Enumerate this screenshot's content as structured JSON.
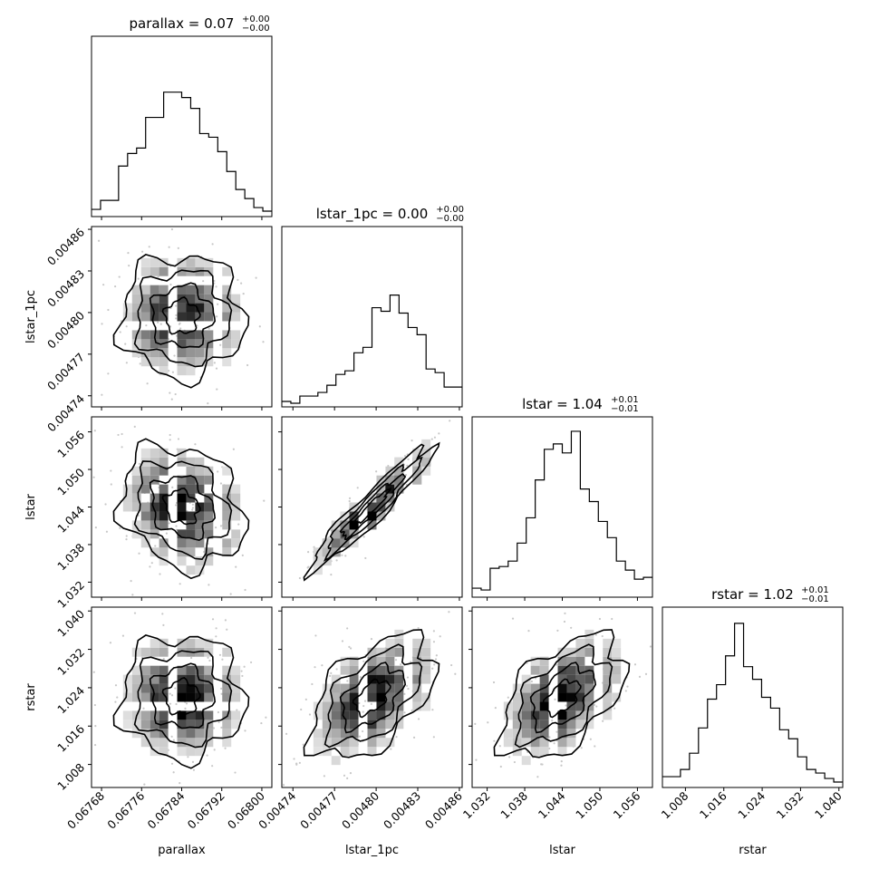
{
  "chart_data": {
    "type": "corner",
    "variables": [
      "parallax",
      "lstar_1pc",
      "lstar",
      "rstar"
    ],
    "axes": [
      {
        "name": "parallax",
        "range": [
          0.06766,
          0.06802
        ],
        "ticks": [
          0.06768,
          0.06776,
          0.06784,
          0.06792,
          0.068
        ],
        "tick_labels": [
          "0.06768",
          "0.06776",
          "0.06784",
          "0.06792",
          "0.06800"
        ]
      },
      {
        "name": "lstar_1pc",
        "range": [
          0.004732,
          0.004862
        ],
        "ticks": [
          0.00474,
          0.00477,
          0.0048,
          0.00483,
          0.00486
        ],
        "tick_labels": [
          "0.00474",
          "0.00477",
          "0.00480",
          "0.00483",
          "0.00486"
        ]
      },
      {
        "name": "lstar",
        "range": [
          1.0296,
          1.0584
        ],
        "ticks": [
          1.032,
          1.038,
          1.044,
          1.05,
          1.056
        ],
        "tick_labels": [
          "1.032",
          "1.038",
          "1.044",
          "1.050",
          "1.056"
        ]
      },
      {
        "name": "rstar",
        "range": [
          1.0032,
          1.0408
        ],
        "ticks": [
          1.008,
          1.016,
          1.024,
          1.032,
          1.04
        ],
        "tick_labels": [
          "1.008",
          "1.016",
          "1.024",
          "1.032",
          "1.040"
        ]
      }
    ],
    "titles": [
      {
        "prefix": "parallax = ",
        "value": "0.07",
        "plus": "+0.00",
        "minus": "−0.00"
      },
      {
        "prefix": "lstar_1pc = ",
        "value": "0.00",
        "plus": "+0.00",
        "minus": "−0.00"
      },
      {
        "prefix": "lstar = ",
        "value": "1.04",
        "plus": "+0.01",
        "minus": "−0.01"
      },
      {
        "prefix": "rstar = ",
        "value": "1.02",
        "plus": "+0.01",
        "minus": "−0.01"
      }
    ],
    "histograms": [
      [
        0.04,
        0.09,
        0.09,
        0.28,
        0.35,
        0.38,
        0.55,
        0.55,
        0.69,
        0.69,
        0.66,
        0.6,
        0.46,
        0.44,
        0.36,
        0.25,
        0.15,
        0.1,
        0.05,
        0.03
      ],
      [
        0.03,
        0.02,
        0.06,
        0.06,
        0.08,
        0.12,
        0.18,
        0.2,
        0.3,
        0.33,
        0.55,
        0.53,
        0.62,
        0.52,
        0.44,
        0.4,
        0.21,
        0.19,
        0.11,
        0.11
      ],
      [
        0.05,
        0.04,
        0.16,
        0.17,
        0.2,
        0.3,
        0.44,
        0.65,
        0.82,
        0.85,
        0.8,
        0.92,
        0.6,
        0.53,
        0.42,
        0.33,
        0.2,
        0.15,
        0.1,
        0.11
      ],
      [
        0.06,
        0.06,
        0.1,
        0.19,
        0.33,
        0.49,
        0.57,
        0.73,
        0.91,
        0.67,
        0.6,
        0.5,
        0.44,
        0.32,
        0.27,
        0.17,
        0.1,
        0.08,
        0.05,
        0.03
      ]
    ],
    "pairs": [
      {
        "x": "parallax",
        "y": "lstar_1pc",
        "correlation": 0.0
      },
      {
        "x": "parallax",
        "y": "lstar",
        "correlation": -0.2
      },
      {
        "x": "lstar_1pc",
        "y": "lstar",
        "correlation": 0.95
      },
      {
        "x": "parallax",
        "y": "rstar",
        "correlation": 0.0
      },
      {
        "x": "lstar_1pc",
        "y": "rstar",
        "correlation": 0.5
      },
      {
        "x": "lstar",
        "y": "rstar",
        "correlation": 0.5
      }
    ]
  }
}
